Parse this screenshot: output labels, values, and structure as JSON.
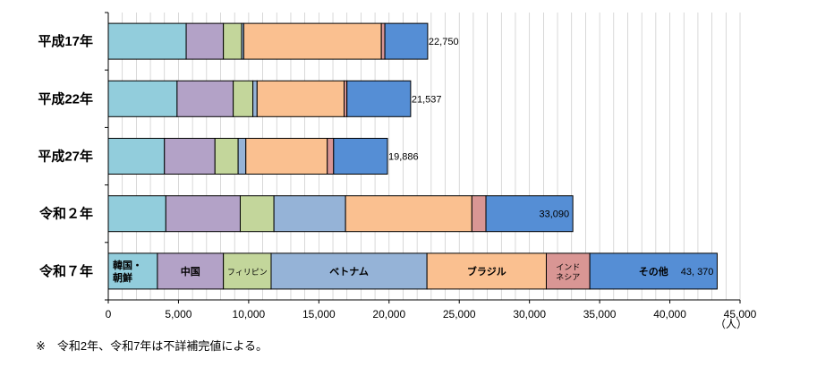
{
  "chart_data": {
    "type": "bar",
    "orientation": "horizontal",
    "stacked": true,
    "title": "",
    "xlabel": "",
    "ylabel": "",
    "unit_label": "（人）",
    "xlim": [
      0,
      45000
    ],
    "x_ticks": [
      "0",
      "5,000",
      "10,000",
      "15,000",
      "20,000",
      "25,000",
      "30,000",
      "35,000",
      "40,000",
      "45,000"
    ],
    "grid": true,
    "categories": [
      "平成17年",
      "平成22年",
      "平成27年",
      "令和２年",
      "令和７年"
    ],
    "series": [
      {
        "name": "韓国・朝鮮",
        "color": "#92cddc",
        "values": [
          5550,
          4900,
          4000,
          4100,
          3500
        ]
      },
      {
        "name": "中国",
        "color": "#b3a2c7",
        "values": [
          2650,
          4000,
          3600,
          5300,
          4700
        ]
      },
      {
        "name": "フィリピン",
        "color": "#c3d69b",
        "values": [
          1300,
          1400,
          1650,
          2400,
          3400
        ]
      },
      {
        "name": "ベトナム",
        "color": "#95b3d7",
        "values": [
          150,
          300,
          550,
          5100,
          11100
        ]
      },
      {
        "name": "ブラジル",
        "color": "#fac090",
        "values": [
          9800,
          6200,
          5800,
          9000,
          8500
        ]
      },
      {
        "name": "インドネシア",
        "color": "#d99694",
        "values": [
          250,
          200,
          450,
          1000,
          3100
        ]
      },
      {
        "name": "その他",
        "color": "#558ed5",
        "values": [
          3050,
          4537,
          3836,
          6190,
          9070
        ]
      }
    ],
    "totals": [
      "22,750",
      "21,537",
      "19,886",
      "33,090",
      "43, 370"
    ],
    "segment_labels": [
      {
        "category": 4,
        "series": 0,
        "lines": [
          "韓国・",
          "朝鮮"
        ]
      },
      {
        "category": 4,
        "series": 1,
        "lines": [
          "中国"
        ]
      },
      {
        "category": 4,
        "series": 2,
        "lines": [
          "フィリピン"
        ],
        "small": true
      },
      {
        "category": 4,
        "series": 3,
        "lines": [
          "ベトナム"
        ]
      },
      {
        "category": 4,
        "series": 4,
        "lines": [
          "ブラジル"
        ]
      },
      {
        "category": 4,
        "series": 5,
        "lines": [
          "インド",
          "ネシア"
        ],
        "small": true
      },
      {
        "category": 4,
        "series": 6,
        "lines": [
          "その他"
        ]
      }
    ]
  },
  "footnote": "※　令和2年、令和7年は不詳補完値による。"
}
